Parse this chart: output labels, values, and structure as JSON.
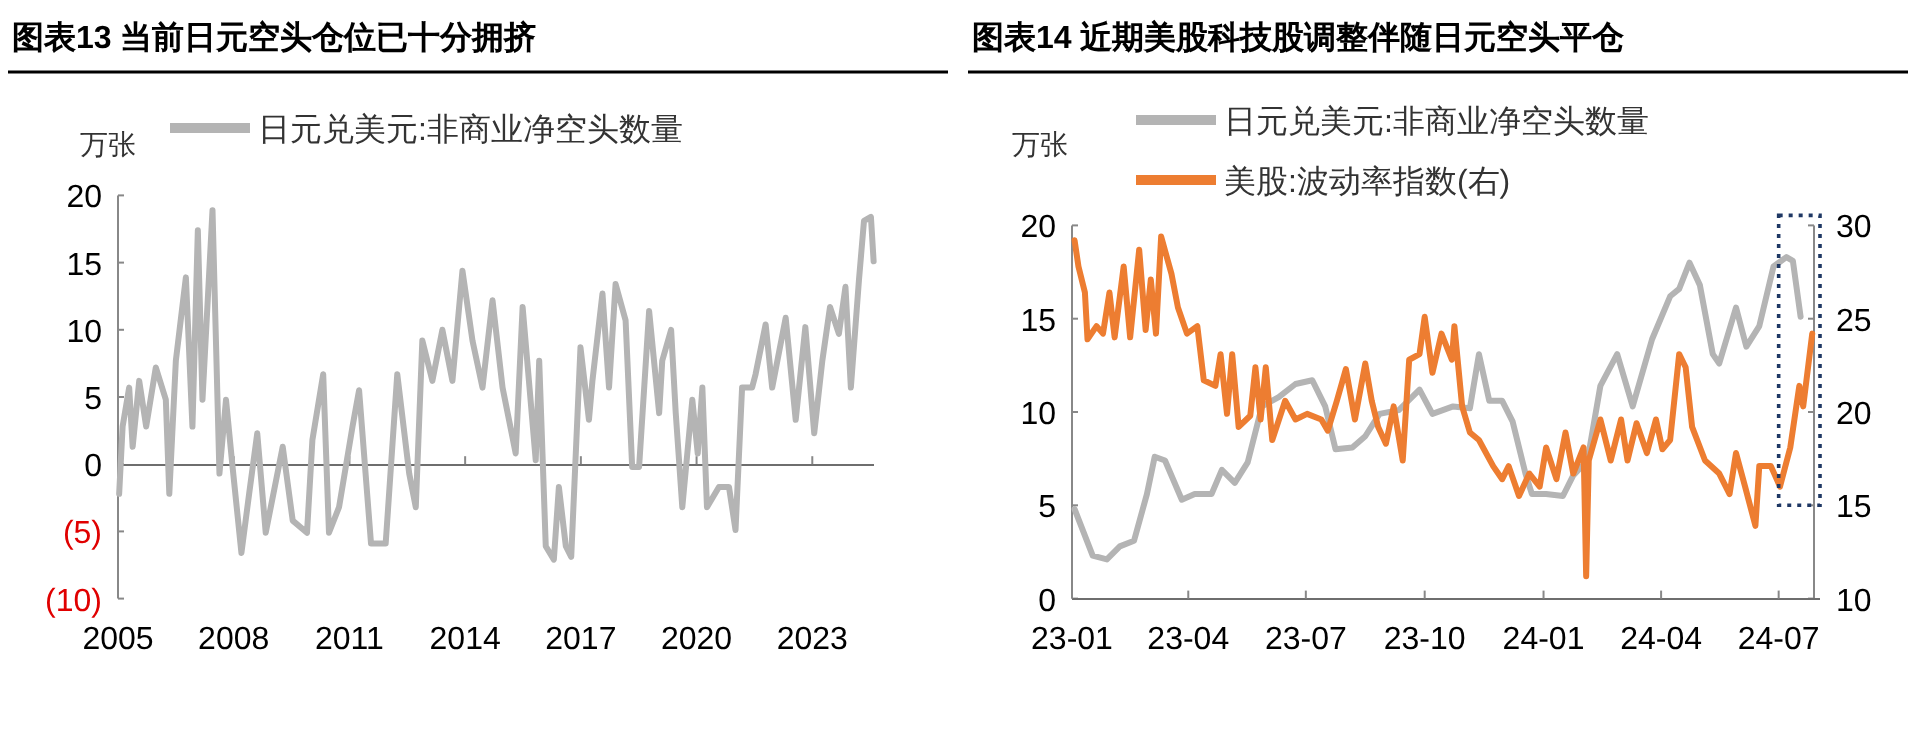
{
  "chart_data": [
    {
      "type": "line",
      "title": "图表13  当前日元空头仓位已十分拥挤",
      "ylabel": "万张",
      "legend": "top",
      "marker": "none",
      "x": [
        2005.03,
        2005.12,
        2005.29,
        2005.38,
        2005.55,
        2005.73,
        2005.98,
        2006.24,
        2006.33,
        2006.5,
        2006.76,
        2006.93,
        2007.07,
        2007.19,
        2007.45,
        2007.63,
        2007.8,
        2007.97,
        2008.2,
        2008.4,
        2008.61,
        2008.83,
        2009.27,
        2009.53,
        2009.9,
        2010.04,
        2010.32,
        2010.47,
        2010.73,
        2011.08,
        2011.25,
        2011.56,
        2011.94,
        2012.24,
        2012.55,
        2012.72,
        2012.89,
        2013.15,
        2013.41,
        2013.67,
        2013.93,
        2014.19,
        2014.45,
        2014.71,
        2014.97,
        2015.31,
        2015.49,
        2015.83,
        2015.92,
        2016.09,
        2016.3,
        2016.43,
        2016.61,
        2016.75,
        2016.99,
        2017.21,
        2017.3,
        2017.56,
        2017.73,
        2017.9,
        2018.16,
        2018.33,
        2018.51,
        2018.77,
        2019.03,
        2019.11,
        2019.34,
        2019.46,
        2019.63,
        2019.89,
        2020.03,
        2020.15,
        2020.27,
        2020.58,
        2020.84,
        2021.01,
        2021.18,
        2021.44,
        2021.53,
        2021.79,
        2021.96,
        2022.31,
        2022.57,
        2022.82,
        2023.05,
        2023.26,
        2023.46,
        2023.69,
        2023.86,
        2024.0,
        2024.21,
        2024.34,
        2024.52,
        2024.59
      ],
      "series": [
        {
          "name": "日元兑美元:非商业净空头数量",
          "color": "#b4b4b4",
          "values": [
            -2.2,
            2.8,
            5.7,
            1.3,
            6.2,
            2.8,
            7.2,
            4.8,
            -2.2,
            7.7,
            13.9,
            2.8,
            17.4,
            4.8,
            18.9,
            -0.7,
            4.8,
            -0.2,
            -6.6,
            -2.2,
            2.3,
            -5.1,
            1.3,
            -4.2,
            -5.1,
            1.8,
            6.7,
            -5.1,
            -3.2,
            2.8,
            5.5,
            -5.9,
            -5.9,
            6.7,
            -0.7,
            -3.2,
            9.2,
            6.2,
            10.0,
            6.2,
            14.4,
            9.2,
            5.7,
            12.2,
            5.7,
            0.8,
            11.7,
            0.3,
            7.7,
            -6.1,
            -7.1,
            -1.7,
            -6.1,
            -6.9,
            8.7,
            3.3,
            6.2,
            12.7,
            5.7,
            13.4,
            10.7,
            -0.2,
            -0.2,
            11.4,
            3.8,
            7.7,
            10.0,
            3.8,
            -3.2,
            4.8,
            0.8,
            5.7,
            -3.2,
            -1.7,
            -1.7,
            -4.9,
            5.7,
            5.7,
            6.7,
            10.4,
            5.7,
            10.9,
            3.3,
            10.2,
            2.3,
            7.7,
            11.7,
            9.7,
            13.2,
            5.7,
            13.7,
            18.1,
            18.4,
            15.1
          ]
        }
      ],
      "xlim": [
        2005,
        2024.6
      ],
      "xticks": [
        2005,
        2008,
        2011,
        2014,
        2017,
        2020,
        2023
      ],
      "ylim": [
        -10,
        20
      ],
      "yticks": [
        {
          "value": -10,
          "label": "(10)"
        },
        {
          "value": -5,
          "label": "(5)"
        },
        0,
        5,
        10,
        15,
        20
      ]
    },
    {
      "type": "line",
      "title": "图表14  近期美股科技股调整伴随日元空头平仓",
      "ylabel": "万张",
      "legend": "top",
      "marker": "none",
      "series": [
        {
          "name": "日元兑美元:非商业净空头数量",
          "color": "#b4b4b4",
          "x": [
            "2023-01-03",
            "2023-01-17",
            "2023-01-28",
            "2023-02-07",
            "2023-02-18",
            "2023-02-28",
            "2023-03-06",
            "2023-03-14",
            "2023-03-27",
            "2023-04-06",
            "2023-04-19",
            "2023-04-27",
            "2023-05-07",
            "2023-05-17",
            "2023-05-28",
            "2023-06-10",
            "2023-06-23",
            "2023-07-06",
            "2023-07-16",
            "2023-07-24",
            "2023-08-06",
            "2023-08-16",
            "2023-08-27",
            "2023-09-11",
            "2023-09-27",
            "2023-10-07",
            "2023-10-23",
            "2023-11-05",
            "2023-11-12",
            "2023-11-20",
            "2023-11-30",
            "2023-12-08",
            "2023-12-18",
            "2023-12-23",
            "2024-01-03",
            "2024-01-16",
            "2024-01-24",
            "2024-02-04",
            "2024-02-14",
            "2024-02-27",
            "2024-03-10",
            "2024-03-25",
            "2024-04-08",
            "2024-04-15",
            "2024-04-23",
            "2024-05-01",
            "2024-05-11",
            "2024-05-16",
            "2024-05-29",
            "2024-06-06",
            "2024-06-16",
            "2024-06-27",
            "2024-07-07",
            "2024-07-12",
            "2024-07-18"
          ],
          "values": [
            4.8,
            2.3,
            2.1,
            2.8,
            3.1,
            5.6,
            7.6,
            7.4,
            5.3,
            5.6,
            5.6,
            6.9,
            6.2,
            7.3,
            10.3,
            10.8,
            11.5,
            11.7,
            10.3,
            8.0,
            8.1,
            8.7,
            9.9,
            10.1,
            11.2,
            9.9,
            10.3,
            10.2,
            13.1,
            10.6,
            10.6,
            9.5,
            6.7,
            5.6,
            5.6,
            5.5,
            6.6,
            7.4,
            11.4,
            13.1,
            10.3,
            13.9,
            16.2,
            16.6,
            18.0,
            16.8,
            13.1,
            12.6,
            15.6,
            13.5,
            14.6,
            17.8,
            18.3,
            18.1,
            15.1
          ]
        },
        {
          "name": "美股:波动率指数(右)",
          "color": "#ed7d31",
          "axis": "y2",
          "x": [
            "2023-01-03",
            "2023-01-06",
            "2023-01-11",
            "2023-01-13",
            "2023-01-20",
            "2023-01-25",
            "2023-01-30",
            "2023-02-03",
            "2023-02-10",
            "2023-02-15",
            "2023-02-22",
            "2023-02-27",
            "2023-03-03",
            "2023-03-07",
            "2023-03-11",
            "2023-03-19",
            "2023-03-24",
            "2023-03-31",
            "2023-04-08",
            "2023-04-13",
            "2023-04-22",
            "2023-04-26",
            "2023-05-01",
            "2023-05-05",
            "2023-05-10",
            "2023-05-19",
            "2023-05-23",
            "2023-05-27",
            "2023-05-31",
            "2023-06-05",
            "2023-06-15",
            "2023-06-23",
            "2023-07-02",
            "2023-07-13",
            "2023-07-18",
            "2023-07-25",
            "2023-08-01",
            "2023-08-08",
            "2023-08-16",
            "2023-08-21",
            "2023-08-26",
            "2023-09-01",
            "2023-09-07",
            "2023-09-14",
            "2023-09-19",
            "2023-09-27",
            "2023-10-01",
            "2023-10-07",
            "2023-10-14",
            "2023-10-22",
            "2023-10-24",
            "2023-10-30",
            "2023-11-05",
            "2023-11-12",
            "2023-11-23",
            "2023-11-30",
            "2023-12-05",
            "2023-12-13",
            "2023-12-21",
            "2023-12-29",
            "2024-01-03",
            "2024-01-11",
            "2024-01-18",
            "2024-01-24",
            "2024-02-01",
            "2024-02-03",
            "2024-02-05",
            "2024-02-14",
            "2024-02-22",
            "2024-03-01",
            "2024-03-06",
            "2024-03-13",
            "2024-03-21",
            "2024-03-28",
            "2024-04-02",
            "2024-04-08",
            "2024-04-15",
            "2024-04-20",
            "2024-04-25",
            "2024-05-05",
            "2024-05-16",
            "2024-05-24",
            "2024-05-29",
            "2024-06-05",
            "2024-06-13",
            "2024-06-16",
            "2024-06-25",
            "2024-07-02",
            "2024-07-10",
            "2024-07-17",
            "2024-07-20",
            "2024-07-27"
          ],
          "values": [
            29.2,
            27.8,
            26.4,
            23.9,
            24.6,
            24.2,
            26.4,
            24.0,
            27.8,
            24.0,
            28.7,
            24.4,
            27.1,
            24.2,
            29.4,
            27.4,
            25.6,
            24.2,
            24.6,
            21.7,
            21.4,
            23.1,
            19.9,
            23.1,
            19.2,
            19.8,
            22.4,
            19.6,
            22.4,
            18.5,
            20.6,
            19.6,
            19.9,
            19.6,
            19.0,
            20.6,
            22.3,
            19.6,
            22.6,
            20.6,
            19.2,
            18.3,
            20.3,
            17.4,
            22.8,
            23.1,
            25.1,
            22.1,
            24.2,
            22.8,
            24.6,
            20.3,
            18.9,
            18.5,
            17.1,
            16.4,
            17.1,
            15.5,
            16.7,
            16.0,
            18.1,
            16.4,
            18.9,
            16.7,
            18.1,
            11.2,
            17.4,
            19.6,
            17.4,
            19.6,
            17.4,
            19.4,
            17.8,
            19.6,
            18.0,
            18.5,
            23.1,
            22.4,
            19.2,
            17.4,
            16.7,
            15.6,
            17.8,
            16.0,
            13.9,
            17.1,
            17.1,
            16.0,
            18.1,
            21.4,
            20.3,
            24.2
          ]
        }
      ],
      "xlim": [
        "2023-01-01",
        "2024-08-02"
      ],
      "xticks": [
        {
          "value": "2023-01-01",
          "label": "23-01"
        },
        {
          "value": "2023-04-01",
          "label": "23-04"
        },
        {
          "value": "2023-07-01",
          "label": "23-07"
        },
        {
          "value": "2023-10-01",
          "label": "23-10"
        },
        {
          "value": "2024-01-01",
          "label": "24-01"
        },
        {
          "value": "2024-04-01",
          "label": "24-04"
        },
        {
          "value": "2024-07-01",
          "label": "24-07"
        }
      ],
      "ylim": [
        0,
        20
      ],
      "yticks": [
        0,
        5,
        10,
        15,
        20
      ],
      "y2lim": [
        10,
        30
      ],
      "y2ticks": [
        10,
        15,
        20,
        25,
        30
      ]
    }
  ]
}
